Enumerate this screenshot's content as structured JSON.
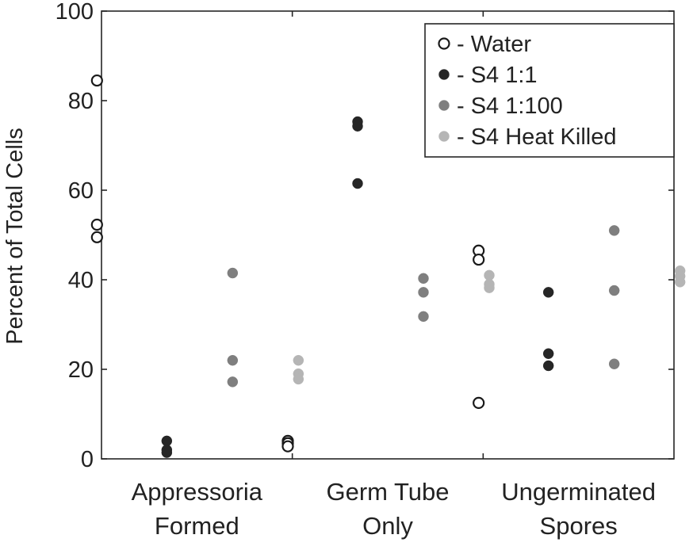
{
  "chart_data": {
    "type": "scatter",
    "title": "",
    "xlabel": "",
    "ylabel": "Percent of Total Cells",
    "ylim": [
      0,
      100
    ],
    "yticks": [
      "0",
      "20",
      "40",
      "60",
      "80",
      "100"
    ],
    "categories": [
      [
        "Appressoria",
        "Formed"
      ],
      [
        "Germ Tube",
        "Only"
      ],
      [
        "Ungerminated",
        "Spores"
      ]
    ],
    "grid": false,
    "legend_position": "top-right",
    "series": [
      {
        "name": "Water",
        "marker": "open-circle",
        "color": "#1a1a1a",
        "values": [
          [
            84.5,
            52.3,
            49.5
          ],
          [
            4.0,
            3.5,
            2.8
          ],
          [
            46.5,
            44.5,
            12.5
          ]
        ]
      },
      {
        "name": "S4 1:1",
        "marker": "filled-circle",
        "color": "#262626",
        "values": [
          [
            4.0,
            2.0,
            1.4
          ],
          [
            75.3,
            74.3,
            61.5
          ],
          [
            37.2,
            23.5,
            20.8
          ]
        ]
      },
      {
        "name": "S4 1:100",
        "marker": "filled-circle",
        "color": "#7f7f7f",
        "values": [
          [
            41.5,
            22.0,
            17.2
          ],
          [
            40.3,
            37.2,
            31.8
          ],
          [
            51.0,
            37.6,
            21.2
          ]
        ]
      },
      {
        "name": "S4 Heat Killed",
        "marker": "filled-circle",
        "color": "#b5b5b5",
        "values": [
          [
            22.0,
            19.0,
            17.8
          ],
          [
            41.0,
            39.0,
            38.2
          ],
          [
            42.0,
            40.8,
            39.5
          ]
        ]
      }
    ]
  }
}
